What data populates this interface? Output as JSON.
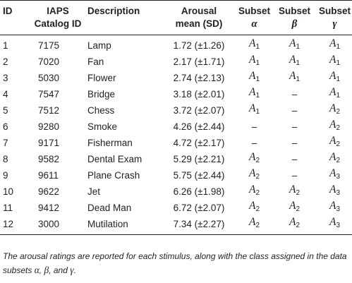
{
  "table": {
    "headers": {
      "id": "ID",
      "catalog_line1": "IAPS",
      "catalog_line2": "Catalog ID",
      "description": "Description",
      "arousal_line1": "Arousal",
      "arousal_line2": "mean (SD)",
      "subset": "Subset",
      "subset_alpha": "α",
      "subset_beta": "β",
      "subset_gamma": "γ"
    },
    "rows": [
      {
        "id": "1",
        "catalog": "7175",
        "description": "Lamp",
        "arousal": "1.72 (±1.26)",
        "alpha": "A1",
        "beta": "A1",
        "gamma": "A1"
      },
      {
        "id": "2",
        "catalog": "7020",
        "description": "Fan",
        "arousal": "2.17 (±1.71)",
        "alpha": "A1",
        "beta": "A1",
        "gamma": "A1"
      },
      {
        "id": "3",
        "catalog": "5030",
        "description": "Flower",
        "arousal": "2.74 (±2.13)",
        "alpha": "A1",
        "beta": "A1",
        "gamma": "A1"
      },
      {
        "id": "4",
        "catalog": "7547",
        "description": "Bridge",
        "arousal": "3.18 (±2.01)",
        "alpha": "A1",
        "beta": "–",
        "gamma": "A1"
      },
      {
        "id": "5",
        "catalog": "7512",
        "description": "Chess",
        "arousal": "3.72 (±2.07)",
        "alpha": "A1",
        "beta": "–",
        "gamma": "A2"
      },
      {
        "id": "6",
        "catalog": "9280",
        "description": "Smoke",
        "arousal": "4.26 (±2.44)",
        "alpha": "–",
        "beta": "–",
        "gamma": "A2"
      },
      {
        "id": "7",
        "catalog": "9171",
        "description": "Fisherman",
        "arousal": "4.72 (±2.17)",
        "alpha": "–",
        "beta": "–",
        "gamma": "A2"
      },
      {
        "id": "8",
        "catalog": "9582",
        "description": "Dental Exam",
        "arousal": "5.29 (±2.21)",
        "alpha": "A2",
        "beta": "–",
        "gamma": "A2"
      },
      {
        "id": "9",
        "catalog": "9611",
        "description": "Plane Crash",
        "arousal": "5.75 (±2.44)",
        "alpha": "A2",
        "beta": "–",
        "gamma": "A3"
      },
      {
        "id": "10",
        "catalog": "9622",
        "description": "Jet",
        "arousal": "6.26 (±1.98)",
        "alpha": "A2",
        "beta": "A2",
        "gamma": "A3"
      },
      {
        "id": "11",
        "catalog": "9412",
        "description": "Dead Man",
        "arousal": "6.72 (±2.07)",
        "alpha": "A2",
        "beta": "A2",
        "gamma": "A3"
      },
      {
        "id": "12",
        "catalog": "3000",
        "description": "Mutilation",
        "arousal": "7.34 (±2.27)",
        "alpha": "A2",
        "beta": "A2",
        "gamma": "A3"
      }
    ]
  },
  "caption": {
    "text_before": "The arousal ratings are reported for each stimulus, along with the class assigned in the data subsets ",
    "alpha": "α",
    "sep1": ", ",
    "beta": "β",
    "sep2": ", and ",
    "gamma": "γ",
    "end": "."
  }
}
